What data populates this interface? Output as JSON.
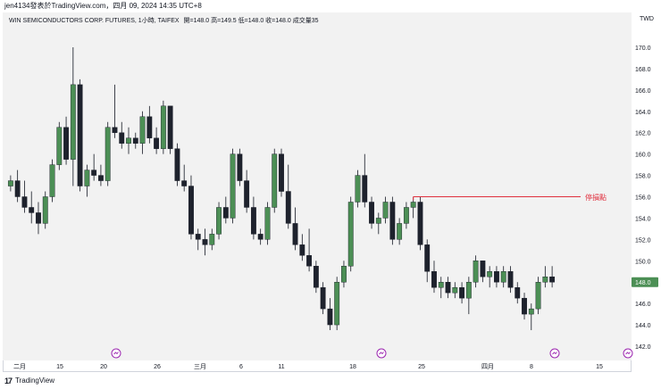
{
  "header": {
    "publish_info": "jen4134發表於TradingView.com，四月 09, 2024 14:35 UTC+8"
  },
  "legend": {
    "symbol_info": "WIN SEMICONDUCTORS CORP. FUTURES, 1小時, TAIFEX",
    "ohlc_text": "開=148.0  高=149.5  低=148.0  收=148.0  成交量35"
  },
  "currency": "TWD",
  "footer": {
    "logo_text": "17",
    "brand": "TradingView"
  },
  "annotation": {
    "label": "停損點",
    "price": 156.0
  },
  "colors": {
    "up": "#4c8f55",
    "down": "#1e222d",
    "annotation": "#e0303e",
    "last_price": "#4c8f55"
  },
  "chart_data": {
    "type": "candlestick",
    "y_ticks": [
      "142.0",
      "144.0",
      "146.0",
      "148.0",
      "150.0",
      "152.0",
      "154.0",
      "156.0",
      "158.0",
      "160.0",
      "162.0",
      "164.0",
      "166.0",
      "168.0",
      "170.0"
    ],
    "ylim": [
      141.0,
      171.5
    ],
    "x_ticks": [
      "二月",
      "15",
      "20",
      "26",
      "三月",
      "6",
      "11",
      "18",
      "25",
      "四月",
      "8",
      "15"
    ],
    "last_price": {
      "label": "148.0",
      "value": 148.0
    },
    "candles_ohlc": [
      [
        157.0,
        158.0,
        156.5,
        157.5
      ],
      [
        157.5,
        158.5,
        155.5,
        156.0
      ],
      [
        156.0,
        157.5,
        154.5,
        155.0
      ],
      [
        155.0,
        156.5,
        153.5,
        154.5
      ],
      [
        154.5,
        155.5,
        152.5,
        153.5
      ],
      [
        153.5,
        156.5,
        153.0,
        156.0
      ],
      [
        156.0,
        159.5,
        155.5,
        159.0
      ],
      [
        159.0,
        163.0,
        158.5,
        162.5
      ],
      [
        162.5,
        163.5,
        159.0,
        159.5
      ],
      [
        159.5,
        170.0,
        157.0,
        166.5
      ],
      [
        166.5,
        167.0,
        156.5,
        157.0
      ],
      [
        157.0,
        159.0,
        156.0,
        158.5
      ],
      [
        158.5,
        160.0,
        157.5,
        158.0
      ],
      [
        158.0,
        159.0,
        157.0,
        157.5
      ],
      [
        157.5,
        163.0,
        157.0,
        162.5
      ],
      [
        162.5,
        166.5,
        161.5,
        162.0
      ],
      [
        162.0,
        163.0,
        160.5,
        161.0
      ],
      [
        161.0,
        162.5,
        160.0,
        161.5
      ],
      [
        161.5,
        162.0,
        160.5,
        161.0
      ],
      [
        161.0,
        164.0,
        160.0,
        163.5
      ],
      [
        163.5,
        164.5,
        161.0,
        161.5
      ],
      [
        161.5,
        162.5,
        160.0,
        160.5
      ],
      [
        160.5,
        165.0,
        160.0,
        164.5
      ],
      [
        164.5,
        164.5,
        160.0,
        160.5
      ],
      [
        160.5,
        161.0,
        157.0,
        157.5
      ],
      [
        157.5,
        159.0,
        156.5,
        157.0
      ],
      [
        157.0,
        158.0,
        152.0,
        152.5
      ],
      [
        152.5,
        153.0,
        151.0,
        152.0
      ],
      [
        152.0,
        153.0,
        150.5,
        151.5
      ],
      [
        151.5,
        153.0,
        151.0,
        152.5
      ],
      [
        152.5,
        155.5,
        152.0,
        155.0
      ],
      [
        155.0,
        156.0,
        153.5,
        154.0
      ],
      [
        154.0,
        160.5,
        153.5,
        160.0
      ],
      [
        160.0,
        160.5,
        157.0,
        157.5
      ],
      [
        157.5,
        158.5,
        154.5,
        155.0
      ],
      [
        155.0,
        156.0,
        152.0,
        152.5
      ],
      [
        152.5,
        153.0,
        151.5,
        152.0
      ],
      [
        152.0,
        155.5,
        151.5,
        155.0
      ],
      [
        155.0,
        160.5,
        154.5,
        160.0
      ],
      [
        160.0,
        160.5,
        156.0,
        156.5
      ],
      [
        156.5,
        159.0,
        153.0,
        153.5
      ],
      [
        153.5,
        155.0,
        151.0,
        151.5
      ],
      [
        151.5,
        152.5,
        150.0,
        150.5
      ],
      [
        150.5,
        153.0,
        149.0,
        149.5
      ],
      [
        149.5,
        150.0,
        147.0,
        147.5
      ],
      [
        147.5,
        148.0,
        145.0,
        145.5
      ],
      [
        145.5,
        146.5,
        143.5,
        144.0
      ],
      [
        144.0,
        148.5,
        143.5,
        148.0
      ],
      [
        148.0,
        150.0,
        147.5,
        149.5
      ],
      [
        149.5,
        156.0,
        149.0,
        155.5
      ],
      [
        155.5,
        158.5,
        155.0,
        158.0
      ],
      [
        158.0,
        160.0,
        155.0,
        155.5
      ],
      [
        155.5,
        156.0,
        153.0,
        153.5
      ],
      [
        153.5,
        154.5,
        152.5,
        154.0
      ],
      [
        154.0,
        156.0,
        153.5,
        155.5
      ],
      [
        155.5,
        156.0,
        151.5,
        152.0
      ],
      [
        152.0,
        154.0,
        151.5,
        153.5
      ],
      [
        153.5,
        155.5,
        153.0,
        155.0
      ],
      [
        155.0,
        156.0,
        154.0,
        155.5
      ],
      [
        155.5,
        156.0,
        151.0,
        151.5
      ],
      [
        151.5,
        152.0,
        148.0,
        149.0
      ],
      [
        149.0,
        150.0,
        147.0,
        147.5
      ],
      [
        147.5,
        148.5,
        146.5,
        148.0
      ],
      [
        148.0,
        148.5,
        146.5,
        147.0
      ],
      [
        147.0,
        148.0,
        146.5,
        147.5
      ],
      [
        147.5,
        148.0,
        146.0,
        146.5
      ],
      [
        146.5,
        148.5,
        145.0,
        148.0
      ],
      [
        148.0,
        150.5,
        147.5,
        150.0
      ],
      [
        150.0,
        150.0,
        148.0,
        148.5
      ],
      [
        148.5,
        149.5,
        147.5,
        149.0
      ],
      [
        149.0,
        149.5,
        147.5,
        148.0
      ],
      [
        148.0,
        149.5,
        147.5,
        149.0
      ],
      [
        149.0,
        149.5,
        147.0,
        147.5
      ],
      [
        147.5,
        148.0,
        146.0,
        146.5
      ],
      [
        146.5,
        147.0,
        144.5,
        145.0
      ],
      [
        145.0,
        146.0,
        143.5,
        145.5
      ],
      [
        145.5,
        148.5,
        145.0,
        148.0
      ],
      [
        148.0,
        149.5,
        147.5,
        148.5
      ],
      [
        148.5,
        149.5,
        147.5,
        148.0
      ]
    ]
  }
}
